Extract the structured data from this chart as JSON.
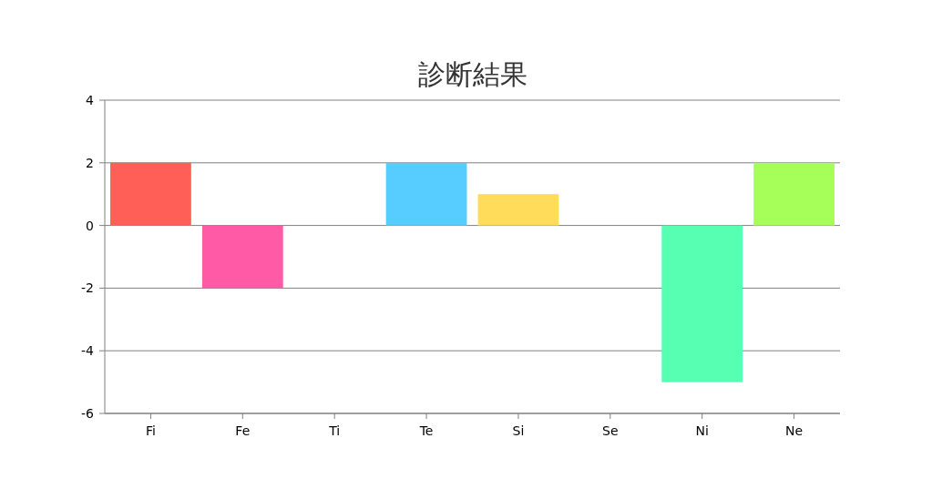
{
  "chart_data": {
    "type": "bar",
    "title": "診断結果",
    "categories": [
      "Fi",
      "Fe",
      "Ti",
      "Te",
      "Si",
      "Se",
      "Ni",
      "Ne"
    ],
    "values": [
      2,
      -2,
      0,
      2,
      1,
      0,
      -5,
      2
    ],
    "colors": [
      "#ff5f57",
      "#ff5aa5",
      "#b0b0b0",
      "#56cdfe",
      "#ffdd5a",
      "#b0b0b0",
      "#56ffb2",
      "#a6ff59"
    ],
    "ylim": [
      -6,
      4
    ],
    "yticks": [
      -6,
      -4,
      -2,
      0,
      2,
      4
    ],
    "grid": "y"
  }
}
